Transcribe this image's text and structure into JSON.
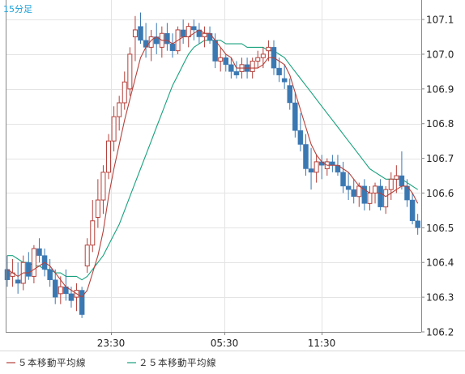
{
  "timeframe_label": "15分足",
  "legend": [
    {
      "label": "５本移動平均線",
      "color": "#b5403a"
    },
    {
      "label": "２５本移動平均線",
      "color": "#17a17d"
    }
  ],
  "colors": {
    "up": "#b5403a",
    "down": "#3a78b2",
    "grid": "#e4e4e4",
    "axis": "#888888",
    "timeframe": "#1a9fd8"
  },
  "chart_data": {
    "type": "candlestick",
    "ylim": [
      106.2,
      107.13
    ],
    "y_ticks": [
      "107.1",
      "107.0",
      "106.9",
      "106.8",
      "106.7",
      "106.6",
      "106.5",
      "106.4",
      "106.3",
      "106.2"
    ],
    "x_ticks": [
      "23:30",
      "05:30",
      "11:30"
    ],
    "candles": [
      [
        106.38,
        106.42,
        106.33,
        106.35
      ],
      [
        106.36,
        106.41,
        106.33,
        106.37
      ],
      [
        106.35,
        106.4,
        106.31,
        106.34
      ],
      [
        106.34,
        106.42,
        106.32,
        106.4
      ],
      [
        106.4,
        106.43,
        106.35,
        106.36
      ],
      [
        106.36,
        106.45,
        106.34,
        106.44
      ],
      [
        106.44,
        106.47,
        106.4,
        106.42
      ],
      [
        106.42,
        106.44,
        106.36,
        106.38
      ],
      [
        106.38,
        106.41,
        106.33,
        106.35
      ],
      [
        106.35,
        106.38,
        106.28,
        106.3
      ],
      [
        106.31,
        106.36,
        106.28,
        106.33
      ],
      [
        106.33,
        106.38,
        106.29,
        106.31
      ],
      [
        106.31,
        106.33,
        106.27,
        106.29
      ],
      [
        106.3,
        106.34,
        106.26,
        106.32
      ],
      [
        106.32,
        106.33,
        106.24,
        106.25
      ],
      [
        106.39,
        106.47,
        106.37,
        106.45
      ],
      [
        106.45,
        106.58,
        106.43,
        106.52
      ],
      [
        106.53,
        106.64,
        106.5,
        106.58
      ],
      [
        106.58,
        106.68,
        106.54,
        106.66
      ],
      [
        106.66,
        106.77,
        106.64,
        106.75
      ],
      [
        106.75,
        106.85,
        106.72,
        106.82
      ],
      [
        106.82,
        106.88,
        106.78,
        106.86
      ],
      [
        106.86,
        106.95,
        106.84,
        106.92
      ],
      [
        106.9,
        107.02,
        106.88,
        107.0
      ],
      [
        107.05,
        107.11,
        106.98,
        107.07
      ],
      [
        107.08,
        107.12,
        107.03,
        107.04
      ],
      [
        107.04,
        107.09,
        106.99,
        107.02
      ],
      [
        107.02,
        107.07,
        106.98,
        107.05
      ],
      [
        107.05,
        107.09,
        107.0,
        107.03
      ],
      [
        107.02,
        107.08,
        106.99,
        107.06
      ],
      [
        107.06,
        107.09,
        107.01,
        107.03
      ],
      [
        107.03,
        107.06,
        106.99,
        107.01
      ],
      [
        107.01,
        107.08,
        107.0,
        107.07
      ],
      [
        107.07,
        107.1,
        107.03,
        107.05
      ],
      [
        107.05,
        107.09,
        107.02,
        107.08
      ],
      [
        107.08,
        107.1,
        107.04,
        107.07
      ],
      [
        107.07,
        107.09,
        107.03,
        107.05
      ],
      [
        107.05,
        107.08,
        107.02,
        107.06
      ],
      [
        107.06,
        107.08,
        107.03,
        107.04
      ],
      [
        107.04,
        107.06,
        106.96,
        106.98
      ],
      [
        106.98,
        107.02,
        106.95,
        106.99
      ],
      [
        106.99,
        107.0,
        106.95,
        106.97
      ],
      [
        106.97,
        106.99,
        106.93,
        106.95
      ],
      [
        106.95,
        106.98,
        106.93,
        106.94
      ],
      [
        106.95,
        106.99,
        106.93,
        106.97
      ],
      [
        106.97,
        106.99,
        106.93,
        106.95
      ],
      [
        106.95,
        106.99,
        106.93,
        106.98
      ],
      [
        106.98,
        107.01,
        106.96,
        106.99
      ],
      [
        106.99,
        107.02,
        106.96,
        107.0
      ],
      [
        107.01,
        107.04,
        106.98,
        107.02
      ],
      [
        107.02,
        107.04,
        106.94,
        106.96
      ],
      [
        106.96,
        106.99,
        106.92,
        106.94
      ],
      [
        106.93,
        106.97,
        106.9,
        106.92
      ],
      [
        106.91,
        106.93,
        106.84,
        106.86
      ],
      [
        106.86,
        106.89,
        106.76,
        106.78
      ],
      [
        106.78,
        106.83,
        106.72,
        106.74
      ],
      [
        106.74,
        106.77,
        106.65,
        106.67
      ],
      [
        106.67,
        106.73,
        106.61,
        106.66
      ],
      [
        106.66,
        106.71,
        106.63,
        106.69
      ],
      [
        106.69,
        106.71,
        106.64,
        106.68
      ],
      [
        106.67,
        106.7,
        106.65,
        106.69
      ],
      [
        106.69,
        106.71,
        106.66,
        106.68
      ],
      [
        106.68,
        106.71,
        106.65,
        106.66
      ],
      [
        106.66,
        106.69,
        106.6,
        106.62
      ],
      [
        106.62,
        106.66,
        106.58,
        106.61
      ],
      [
        106.61,
        106.64,
        106.57,
        106.59
      ],
      [
        106.59,
        106.63,
        106.56,
        106.62
      ],
      [
        106.62,
        106.64,
        106.55,
        106.57
      ],
      [
        106.57,
        106.62,
        106.55,
        106.6
      ],
      [
        106.6,
        106.63,
        106.57,
        106.62
      ],
      [
        106.62,
        106.64,
        106.55,
        106.56
      ],
      [
        106.56,
        106.62,
        106.54,
        106.61
      ],
      [
        106.61,
        106.66,
        106.58,
        106.64
      ],
      [
        106.64,
        106.68,
        106.6,
        106.65
      ],
      [
        106.65,
        106.72,
        106.61,
        106.62
      ],
      [
        106.62,
        106.64,
        106.56,
        106.58
      ],
      [
        106.58,
        106.6,
        106.51,
        106.52
      ],
      [
        106.52,
        106.54,
        106.48,
        106.5
      ]
    ],
    "ma5": [
      106.38,
      106.37,
      106.36,
      106.37,
      106.37,
      106.38,
      106.39,
      106.4,
      106.39,
      106.37,
      106.35,
      106.33,
      106.32,
      106.31,
      106.3,
      106.32,
      106.37,
      106.42,
      106.49,
      106.59,
      106.67,
      106.74,
      106.81,
      106.87,
      106.93,
      106.99,
      107.02,
      107.04,
      107.05,
      107.04,
      107.04,
      107.03,
      107.04,
      107.05,
      107.05,
      107.06,
      107.07,
      107.06,
      107.06,
      107.04,
      107.02,
      107.0,
      106.99,
      106.96,
      106.96,
      106.96,
      106.96,
      106.96,
      106.97,
      106.99,
      106.99,
      106.98,
      106.97,
      106.94,
      106.89,
      106.84,
      106.79,
      106.74,
      106.71,
      106.69,
      106.68,
      106.68,
      106.68,
      106.67,
      106.66,
      106.64,
      106.62,
      106.61,
      106.6,
      106.6,
      106.6,
      106.59,
      106.6,
      106.61,
      106.62,
      106.62,
      106.6,
      106.57
    ],
    "ma25": [
      106.42,
      106.42,
      106.41,
      106.4,
      106.4,
      106.39,
      106.39,
      106.38,
      106.38,
      106.37,
      106.37,
      106.36,
      106.36,
      106.36,
      106.35,
      106.36,
      106.38,
      106.4,
      106.42,
      106.45,
      106.48,
      106.51,
      106.55,
      106.59,
      106.63,
      106.67,
      106.71,
      106.75,
      106.79,
      106.83,
      106.87,
      106.91,
      106.94,
      106.97,
      107.0,
      107.02,
      107.03,
      107.04,
      107.04,
      107.04,
      107.04,
      107.03,
      107.03,
      107.03,
      107.03,
      107.02,
      107.02,
      107.02,
      107.02,
      107.01,
      107.01,
      107.0,
      106.99,
      106.97,
      106.95,
      106.93,
      106.91,
      106.89,
      106.87,
      106.85,
      106.83,
      106.81,
      106.79,
      106.77,
      106.75,
      106.73,
      106.71,
      106.69,
      106.67,
      106.66,
      106.65,
      106.64,
      106.64,
      106.64,
      106.64,
      106.63,
      106.62,
      106.61
    ]
  }
}
